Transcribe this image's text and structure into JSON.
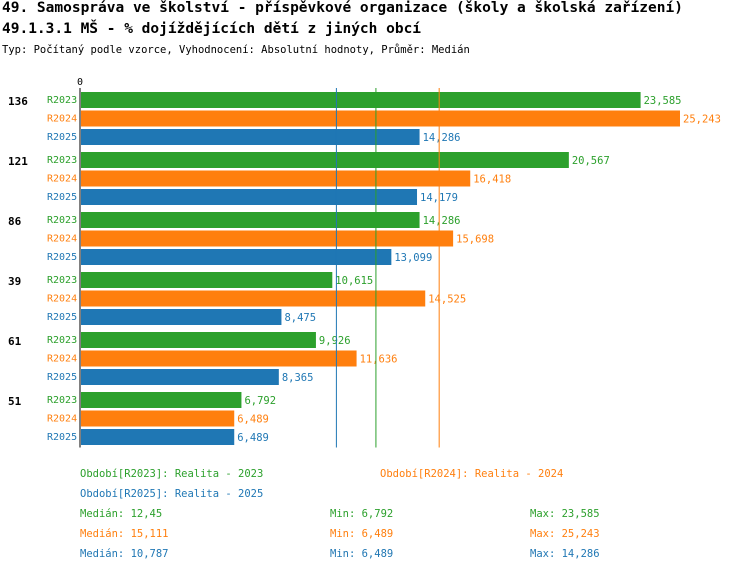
{
  "header": {
    "title_line1": "49. Samospráva ve školství - příspěvkové organizace (školy a školská zařízení)",
    "title_line2": "49.1.3.1 MŠ - % dojíždějících dětí z jiných obcí",
    "subtitle": "Typ: Počítaný podle vzorce, Vyhodnocení: Absolutní hodnoty, Průměr: Medián"
  },
  "colors": {
    "R2023": "#2ca02c",
    "R2024": "#ff7f0e",
    "R2025": "#1f77b4"
  },
  "chart_data": {
    "type": "bar",
    "orientation": "horizontal",
    "axis_zero_label": "0",
    "xlim": [
      0,
      25.243
    ],
    "groups": [
      "136",
      "121",
      "86",
      "39",
      "61",
      "51"
    ],
    "series": [
      {
        "name": "R2023",
        "values": [
          23.585,
          20.567,
          14.286,
          10.615,
          9.926,
          6.792
        ],
        "labels": [
          "23,585",
          "20,567",
          "14,286",
          "10,615",
          "9,926",
          "6,792"
        ]
      },
      {
        "name": "R2024",
        "values": [
          25.243,
          16.418,
          15.698,
          14.525,
          11.636,
          6.489
        ],
        "labels": [
          "25,243",
          "16,418",
          "15,698",
          "14,525",
          "11,636",
          "6,489"
        ]
      },
      {
        "name": "R2025",
        "values": [
          14.286,
          14.179,
          13.099,
          8.475,
          8.365,
          6.489
        ],
        "labels": [
          "14,286",
          "14,179",
          "13,099",
          "8,475",
          "8,365",
          "6,489"
        ]
      }
    ],
    "medians": {
      "R2023": 12.45,
      "R2024": 15.111,
      "R2025": 10.787
    }
  },
  "legend": {
    "period_2023": "Období[R2023]: Realita - 2023",
    "period_2024": "Období[R2024]: Realita - 2024",
    "period_2025": "Období[R2025]: Realita - 2025",
    "stats": [
      {
        "median": "Medián: 12,45",
        "min": "Min: 6,792",
        "max": "Max: 23,585"
      },
      {
        "median": "Medián: 15,111",
        "min": "Min: 6,489",
        "max": "Max: 25,243"
      },
      {
        "median": "Medián: 10,787",
        "min": "Min: 6,489",
        "max": "Max: 14,286"
      }
    ]
  }
}
